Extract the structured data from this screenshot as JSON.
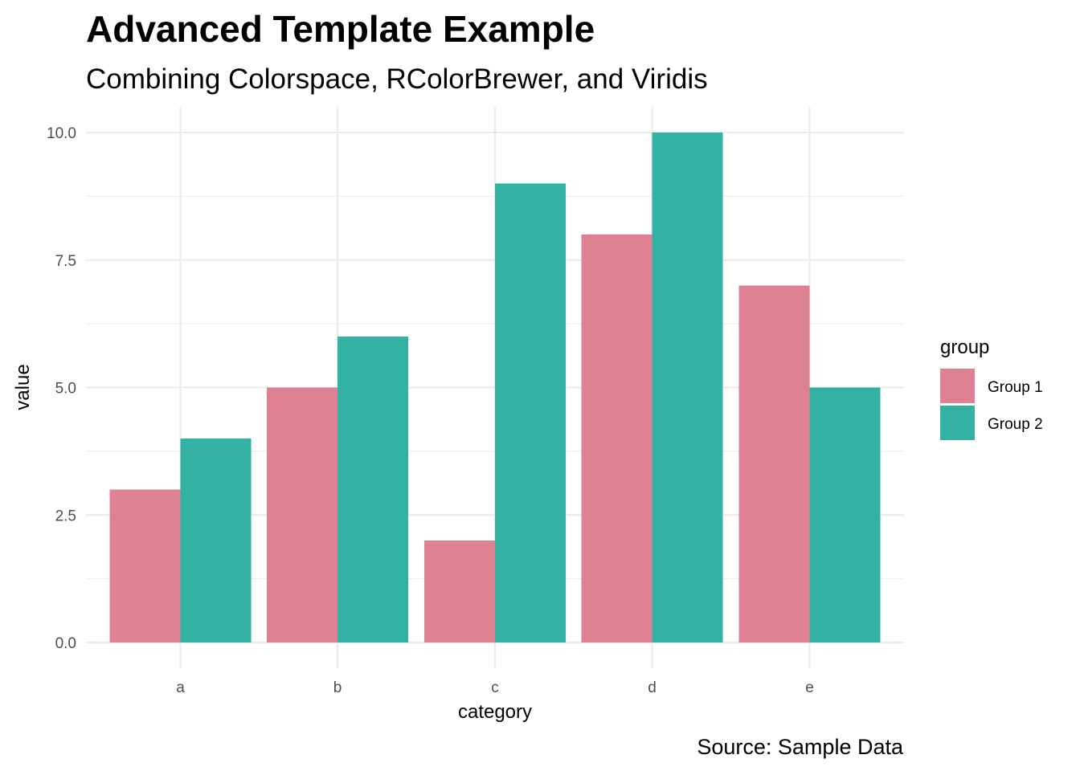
{
  "chart_data": {
    "type": "bar",
    "title": "Advanced Template Example",
    "subtitle": "Combining Colorspace, RColorBrewer, and Viridis",
    "xlabel": "category",
    "ylabel": "value",
    "caption": "Source: Sample Data",
    "categories": [
      "a",
      "b",
      "c",
      "d",
      "e"
    ],
    "series": [
      {
        "name": "Group 1",
        "color": "#DD8193",
        "values": [
          3,
          5,
          2,
          8,
          7
        ]
      },
      {
        "name": "Group 2",
        "color": "#33B2A3",
        "values": [
          4,
          6,
          9,
          10,
          5
        ]
      }
    ],
    "ylim": [
      0,
      10
    ],
    "yticks": [
      "0.0",
      "2.5",
      "5.0",
      "7.5",
      "10.0"
    ],
    "ytick_values": [
      0,
      2.5,
      5,
      7.5,
      10
    ],
    "grid": true,
    "barmode": "dodge",
    "legend": {
      "title": "group",
      "position": "right"
    }
  }
}
